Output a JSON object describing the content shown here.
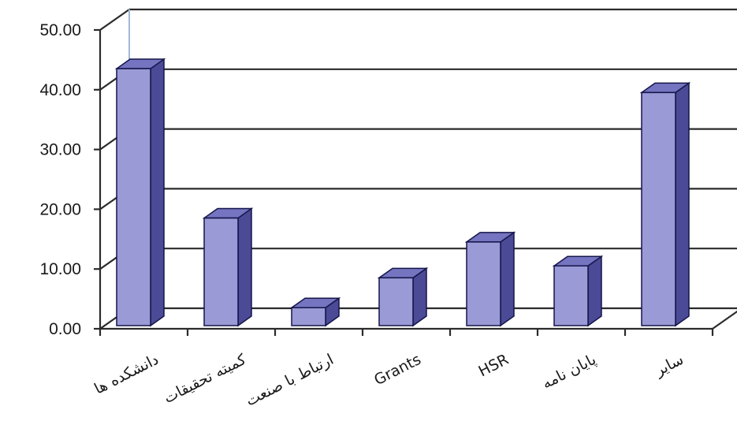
{
  "chart_data": {
    "type": "bar",
    "categories": [
      "دانشکده ها",
      "کمیته تحقیقات",
      "ارتباط با صنعت",
      "Grants",
      "HSR",
      "پایان نامه",
      "سایر"
    ],
    "values": [
      43,
      18,
      3,
      8,
      14,
      10,
      39
    ],
    "title": "",
    "xlabel": "",
    "ylabel": "",
    "ylim": [
      0,
      50
    ],
    "yticks": [
      "0.00",
      "10.00",
      "20.00",
      "30.00",
      "40.00",
      "50.00"
    ],
    "grid": true,
    "style": "3d-column",
    "colors": {
      "bar_front": "#9a9ad6",
      "bar_side": "#4a4a96",
      "bar_top": "#7474c0",
      "bar_stroke": "#15154a",
      "grid": "#2b2b2b"
    }
  }
}
